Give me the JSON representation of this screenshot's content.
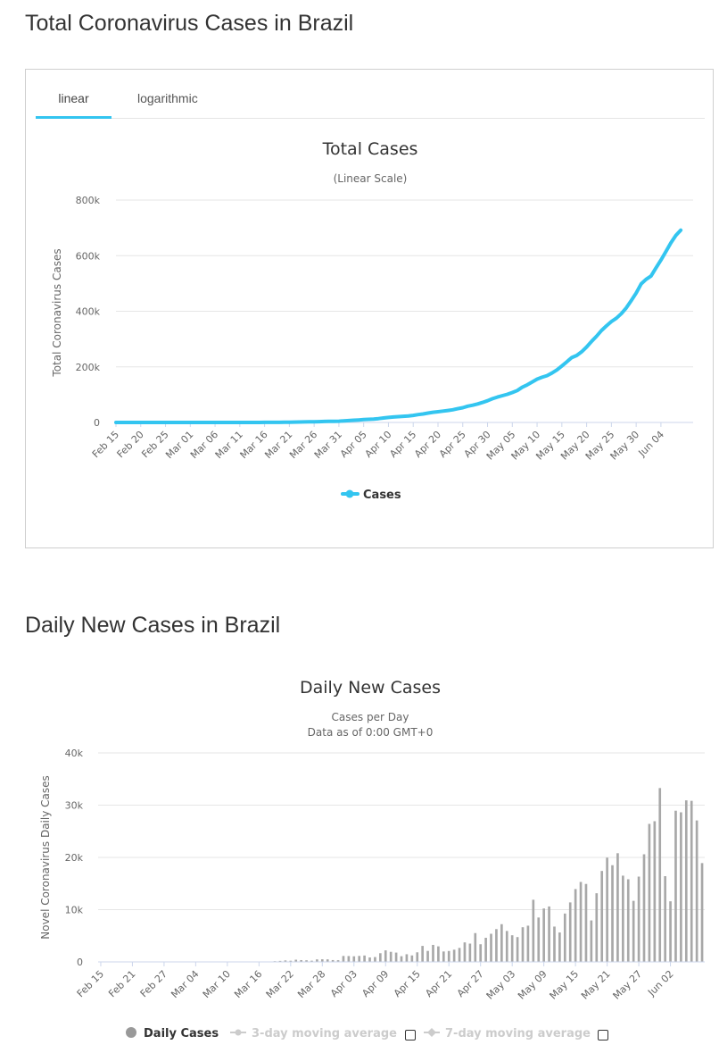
{
  "page": {
    "title_total": "Total Coronavirus Cases in Brazil",
    "title_daily": "Daily New Cases in Brazil"
  },
  "tabs": {
    "linear_label": "linear",
    "log_label": "logarithmic",
    "active": "linear",
    "accent": "#33c5f0"
  },
  "chart_data": [
    {
      "type": "line",
      "title": "Total Cases",
      "subtitle": "(Linear Scale)",
      "xlabel": "",
      "ylabel": "Total Coronavirus Cases",
      "ylim": [
        0,
        800000
      ],
      "yticks": [
        0,
        200000,
        400000,
        600000,
        800000
      ],
      "ytick_labels": [
        "0",
        "200k",
        "400k",
        "600k",
        "800k"
      ],
      "grid": true,
      "x_start": "Feb 15",
      "x_tick_labels": [
        "Feb 15",
        "Feb 20",
        "Feb 25",
        "Mar 01",
        "Mar 06",
        "Mar 11",
        "Mar 16",
        "Mar 21",
        "Mar 26",
        "Mar 31",
        "Apr 05",
        "Apr 10",
        "Apr 15",
        "Apr 20",
        "Apr 25",
        "Apr 30",
        "May 05",
        "May 10",
        "May 15",
        "May 20",
        "May 25",
        "May 30",
        "Jun 04"
      ],
      "legend": "bottom-center",
      "series": [
        {
          "name": "Cases",
          "color": "#33c5f0",
          "values": [
            0,
            0,
            0,
            0,
            0,
            0,
            0,
            0,
            0,
            0,
            0,
            0,
            1,
            1,
            1,
            2,
            2,
            2,
            2,
            3,
            8,
            13,
            19,
            25,
            25,
            34,
            52,
            77,
            98,
            121,
            200,
            234,
            291,
            428,
            621,
            904,
            1128,
            1546,
            1891,
            2201,
            2433,
            2915,
            3417,
            3904,
            4256,
            4579,
            5717,
            6836,
            7910,
            9056,
            10278,
            11130,
            12056,
            13717,
            15927,
            17857,
            19638,
            20727,
            22192,
            23430,
            25262,
            28320,
            30425,
            33682,
            36658,
            38654,
            40743,
            43079,
            45757,
            49492,
            52995,
            58509,
            61888,
            66501,
            71886,
            78162,
            85380,
            91299,
            96396,
            101147,
            107780,
            114715,
            126611,
            135106,
            145328,
            155939,
            162699,
            168331,
            177589,
            188974,
            202918,
            218223,
            233142,
            241080,
            254220,
            271628,
            291579,
            310087,
            330890,
            347398,
            363211,
            374898,
            391222,
            411821,
            438238,
            465166,
            498440,
            514849,
            526447,
            555383,
            584016,
            614941,
            645771,
            672846,
            691758
          ]
        }
      ]
    },
    {
      "type": "bar",
      "title": "Daily New Cases",
      "subtitle": [
        "Cases per Day",
        "Data as of 0:00 GMT+0"
      ],
      "xlabel": "",
      "ylabel": "Novel Coronavirus Daily Cases",
      "ylim": [
        0,
        40000
      ],
      "yticks": [
        0,
        10000,
        20000,
        30000,
        40000
      ],
      "ytick_labels": [
        "0",
        "10k",
        "20k",
        "30k",
        "40k"
      ],
      "grid": true,
      "x_start": "Feb 15",
      "x_tick_labels": [
        "Feb 15",
        "Feb 21",
        "Feb 27",
        "Mar 04",
        "Mar 10",
        "Mar 16",
        "Mar 22",
        "Mar 28",
        "Apr 03",
        "Apr 09",
        "Apr 15",
        "Apr 21",
        "Apr 27",
        "May 03",
        "May 09",
        "May 15",
        "May 21",
        "May 27",
        "Jun 02"
      ],
      "legend": [
        "Daily Cases",
        "3-day moving average",
        "7-day moving average"
      ],
      "series": [
        {
          "name": "Daily Cases",
          "color": "#a8a8a8",
          "values": [
            0,
            0,
            0,
            0,
            0,
            0,
            0,
            0,
            0,
            0,
            0,
            0,
            1,
            0,
            0,
            1,
            0,
            0,
            0,
            1,
            5,
            5,
            6,
            6,
            0,
            9,
            18,
            25,
            21,
            23,
            79,
            34,
            57,
            137,
            193,
            283,
            224,
            418,
            345,
            310,
            232,
            482,
            502,
            487,
            352,
            323,
            1138,
            1119,
            1074,
            1146,
            1222,
            852,
            926,
            1661,
            2210,
            1930,
            1781,
            1089,
            1465,
            1238,
            1832,
            3058,
            2105,
            3257,
            2976,
            1996,
            2089,
            2336,
            2678,
            3735,
            3503,
            5514,
            3379,
            4613,
            5385,
            6276,
            7218,
            5919,
            5097,
            4751,
            6633,
            6935,
            11896,
            8495,
            10222,
            10611,
            6760,
            5632,
            9258,
            11385,
            13944,
            15305,
            14919,
            7938,
            13140,
            17408,
            19951,
            18508,
            20803,
            16508,
            15813,
            11687,
            16324,
            20599,
            26417,
            26928,
            33274,
            16409,
            11598,
            28936,
            28633,
            30925,
            30830,
            27075,
            18912
          ]
        }
      ]
    }
  ]
}
